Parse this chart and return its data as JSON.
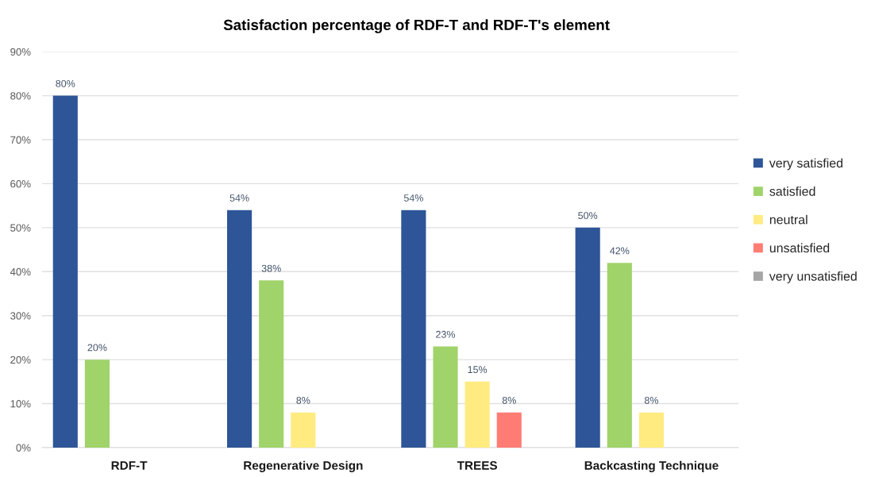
{
  "chart_data": {
    "type": "bar",
    "title": "Satisfaction percentage of RDF-T and RDF-T's element",
    "categories": [
      "RDF-T",
      "Regenerative Design",
      "TREES",
      "Backcasting Technique"
    ],
    "series": [
      {
        "name": "very satisfied",
        "color": "#2e5597",
        "values": [
          80,
          54,
          54,
          50
        ],
        "value_labels": [
          "80%",
          "54%",
          "54%",
          "50%"
        ]
      },
      {
        "name": "satisfied",
        "color": "#a0d36a",
        "values": [
          20,
          38,
          23,
          42
        ],
        "value_labels": [
          "20%",
          "38%",
          "23%",
          "42%"
        ]
      },
      {
        "name": "neutral",
        "color": "#ffeb80",
        "values": [
          null,
          8,
          15,
          8
        ],
        "value_labels": [
          null,
          "8%",
          "15%",
          "8%"
        ]
      },
      {
        "name": "unsatisfied",
        "color": "#ff7c75",
        "values": [
          null,
          null,
          8,
          null
        ],
        "value_labels": [
          null,
          null,
          "8%",
          null
        ]
      },
      {
        "name": "very unsatisfied",
        "color": "#a5a5a5",
        "values": [
          null,
          null,
          null,
          null
        ],
        "value_labels": [
          null,
          null,
          null,
          null
        ]
      }
    ],
    "ylim": [
      0,
      90
    ],
    "yticks": [
      {
        "value": 0,
        "label": "0%"
      },
      {
        "value": 10,
        "label": "10%"
      },
      {
        "value": 20,
        "label": "20%"
      },
      {
        "value": 30,
        "label": "30%"
      },
      {
        "value": 40,
        "label": "40%"
      },
      {
        "value": 50,
        "label": "50%"
      },
      {
        "value": 60,
        "label": "60%"
      },
      {
        "value": 70,
        "label": "70%"
      },
      {
        "value": 80,
        "label": "80%"
      },
      {
        "value": 90,
        "label": "90%"
      }
    ],
    "grid": "y",
    "legend": "right"
  }
}
